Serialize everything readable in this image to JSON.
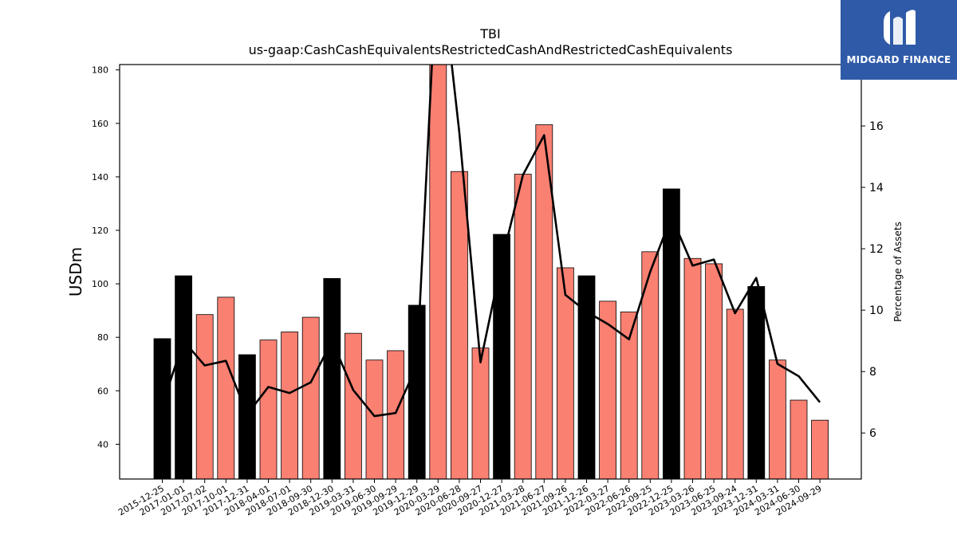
{
  "chart_data": {
    "type": "bar",
    "title": "TBI",
    "subtitle": "us-gaap:CashCashEquivalentsRestrictedCashAndRestrictedCashEquivalents",
    "ylabel": "USDm",
    "y2label": "Percentage of Assets",
    "ylim": [
      27,
      182
    ],
    "y2lim": [
      4.5,
      18.0
    ],
    "yticks": [
      40,
      60,
      80,
      100,
      120,
      140,
      160,
      180
    ],
    "y2ticks": [
      6,
      8,
      10,
      12,
      14,
      16
    ],
    "categories": [
      "2015-12-25",
      "2017-01-01",
      "2017-07-02",
      "2017-10-01",
      "2017-12-31",
      "2018-04-01",
      "2018-07-01",
      "2018-09-30",
      "2018-12-30",
      "2019-03-31",
      "2019-06-30",
      "2019-09-29",
      "2019-12-29",
      "2020-03-29",
      "2020-06-28",
      "2020-09-27",
      "2020-12-27",
      "2021-03-28",
      "2021-06-27",
      "2021-09-26",
      "2021-12-26",
      "2022-03-27",
      "2022-06-26",
      "2022-09-25",
      "2022-12-25",
      "2023-03-26",
      "2023-06-25",
      "2023-09-24",
      "2023-12-31",
      "2024-03-31",
      "2024-06-30",
      "2024-09-29"
    ],
    "series": [
      {
        "type": "bar",
        "values": [
          79.5,
          103,
          88.5,
          95,
          73.5,
          79,
          82,
          87.5,
          102,
          81.5,
          71.5,
          75,
          92,
          183,
          142,
          76,
          118.5,
          141,
          159.5,
          106,
          103,
          93.5,
          89.5,
          112,
          135.5,
          109.5,
          107.5,
          90.5,
          99,
          71.5,
          56.5,
          49
        ],
        "colors": [
          "#000000",
          "#000000",
          "#fa8072",
          "#fa8072",
          "#000000",
          "#fa8072",
          "#fa8072",
          "#fa8072",
          "#000000",
          "#fa8072",
          "#fa8072",
          "#fa8072",
          "#000000",
          "#fa8072",
          "#fa8072",
          "#fa8072",
          "#000000",
          "#fa8072",
          "#fa8072",
          "#fa8072",
          "#000000",
          "#fa8072",
          "#fa8072",
          "#fa8072",
          "#000000",
          "#fa8072",
          "#fa8072",
          "#fa8072",
          "#000000",
          "#fa8072",
          "#fa8072",
          "#fa8072"
        ]
      },
      {
        "type": "line",
        "axis": "right",
        "color": "#000000",
        "values": [
          6.9,
          9.0,
          8.2,
          8.35,
          6.6,
          7.5,
          7.3,
          7.65,
          9.0,
          7.4,
          6.55,
          6.65,
          8.2,
          22.0,
          15.8,
          8.3,
          11.6,
          14.4,
          15.7,
          10.5,
          9.95,
          9.55,
          9.05,
          11.25,
          13.05,
          11.45,
          11.65,
          9.9,
          11.05,
          8.25,
          7.85,
          7.0
        ]
      }
    ],
    "grid": false,
    "legend": "none"
  },
  "logo": {
    "name": "MIDGARD FINANCE",
    "bg": "#2f5aa8"
  }
}
